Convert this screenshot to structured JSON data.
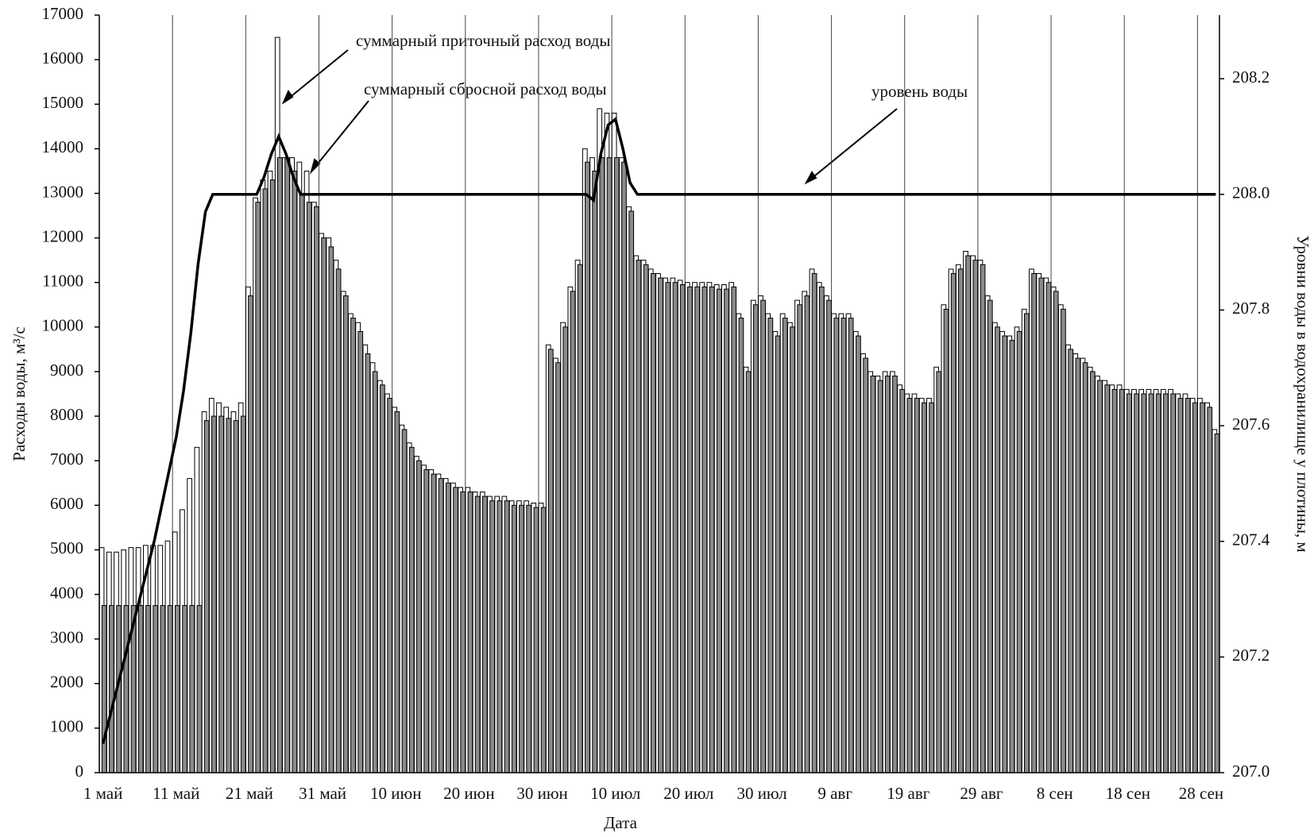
{
  "chart_data": {
    "type": "bar",
    "x_label": "Дата",
    "y_label": "Расходы воды, м³/с",
    "y2_label": "Уровни воды в водохранилище у плотины, м",
    "annotations": [
      "суммарный приточный расход воды",
      "суммарный сбросной расход воды",
      "уровень воды"
    ],
    "categories": [
      "1 май",
      null,
      null,
      null,
      null,
      null,
      null,
      null,
      null,
      null,
      "11 май",
      null,
      null,
      null,
      null,
      null,
      null,
      null,
      null,
      null,
      "21 май",
      null,
      null,
      null,
      null,
      null,
      null,
      null,
      null,
      null,
      "31 май",
      null,
      null,
      null,
      null,
      null,
      null,
      null,
      null,
      null,
      "10 июн",
      null,
      null,
      null,
      null,
      null,
      null,
      null,
      null,
      null,
      "20 июн",
      null,
      null,
      null,
      null,
      null,
      null,
      null,
      null,
      null,
      "30 июн",
      null,
      null,
      null,
      null,
      null,
      null,
      null,
      null,
      null,
      "10 июл",
      null,
      null,
      null,
      null,
      null,
      null,
      null,
      null,
      null,
      "20 июл",
      null,
      null,
      null,
      null,
      null,
      null,
      null,
      null,
      null,
      "30 июл",
      null,
      null,
      null,
      null,
      null,
      null,
      null,
      null,
      null,
      "9 авг",
      null,
      null,
      null,
      null,
      null,
      null,
      null,
      null,
      null,
      "19 авг",
      null,
      null,
      null,
      null,
      null,
      null,
      null,
      null,
      null,
      "29 авг",
      null,
      null,
      null,
      null,
      null,
      null,
      null,
      null,
      null,
      "8 сен",
      null,
      null,
      null,
      null,
      null,
      null,
      null,
      null,
      null,
      "18 сен",
      null,
      null,
      null,
      null,
      null,
      null,
      null,
      null,
      null,
      "28 сен",
      null,
      null
    ],
    "series": [
      {
        "name": "суммарный приточный расход воды",
        "color": "#ffffff",
        "values": [
          5050,
          4950,
          4950,
          5000,
          5050,
          5050,
          5100,
          5100,
          5100,
          5200,
          5400,
          5900,
          6600,
          7300,
          8100,
          8400,
          8300,
          8200,
          8100,
          8300,
          10900,
          12900,
          13300,
          13500,
          16500,
          13800,
          13800,
          13700,
          13500,
          12800,
          12100,
          12000,
          11500,
          10800,
          10300,
          10100,
          9600,
          9200,
          8800,
          8500,
          8200,
          7800,
          7400,
          7100,
          6900,
          6800,
          6700,
          6600,
          6500,
          6400,
          6400,
          6300,
          6300,
          6200,
          6200,
          6200,
          6100,
          6100,
          6100,
          6050,
          6050,
          9600,
          9300,
          10100,
          10900,
          11500,
          14000,
          13800,
          14900,
          14800,
          14800,
          13800,
          12700,
          11600,
          11500,
          11300,
          11200,
          11100,
          11100,
          11050,
          11000,
          11000,
          11000,
          11000,
          10950,
          10950,
          11000,
          10300,
          9100,
          10600,
          10700,
          10300,
          9900,
          10300,
          10100,
          10600,
          10800,
          11300,
          11000,
          10700,
          10300,
          10300,
          10300,
          9900,
          9400,
          9000,
          8900,
          9000,
          9000,
          8700,
          8500,
          8500,
          8400,
          8400,
          9100,
          10500,
          11300,
          11400,
          11700,
          11600,
          11500,
          10700,
          10100,
          9900,
          9800,
          10000,
          10400,
          11300,
          11200,
          11100,
          10900,
          10500,
          9600,
          9400,
          9300,
          9100,
          8900,
          8800,
          8700,
          8700,
          8600,
          8600,
          8600,
          8600,
          8600,
          8600,
          8600,
          8500,
          8500,
          8400,
          8400,
          8300,
          7700
        ]
      },
      {
        "name": "суммарный сбросной расход воды",
        "color": "#8a8a8a",
        "values": [
          3750,
          3750,
          3750,
          3750,
          3750,
          3750,
          3750,
          3750,
          3750,
          3750,
          3750,
          3750,
          3750,
          3750,
          7900,
          8000,
          8000,
          7950,
          7900,
          8000,
          10700,
          12800,
          13100,
          13300,
          13800,
          13800,
          13500,
          13000,
          12800,
          12700,
          12000,
          11800,
          11300,
          10700,
          10200,
          9900,
          9400,
          9000,
          8700,
          8400,
          8100,
          7700,
          7300,
          7000,
          6800,
          6700,
          6600,
          6500,
          6400,
          6300,
          6300,
          6200,
          6200,
          6100,
          6100,
          6100,
          6000,
          6000,
          6000,
          5950,
          5950,
          9500,
          9200,
          10000,
          10800,
          11400,
          13700,
          13500,
          13800,
          13800,
          13800,
          13700,
          12600,
          11500,
          11400,
          11200,
          11100,
          11000,
          11000,
          10950,
          10900,
          10900,
          10900,
          10900,
          10850,
          10850,
          10900,
          10200,
          9000,
          10500,
          10600,
          10200,
          9800,
          10200,
          10000,
          10500,
          10700,
          11200,
          10900,
          10600,
          10200,
          10200,
          10200,
          9800,
          9300,
          8900,
          8800,
          8900,
          8900,
          8600,
          8400,
          8400,
          8300,
          8300,
          9000,
          10400,
          11200,
          11300,
          11600,
          11500,
          11400,
          10600,
          10000,
          9800,
          9700,
          9900,
          10300,
          11200,
          11100,
          11000,
          10800,
          10400,
          9500,
          9300,
          9200,
          9000,
          8800,
          8700,
          8600,
          8600,
          8500,
          8500,
          8500,
          8500,
          8500,
          8500,
          8500,
          8400,
          8400,
          8300,
          8300,
          8200,
          7600
        ]
      },
      {
        "name": "уровень воды",
        "color": "#000000",
        "axis": "y2",
        "type": "line",
        "values": [
          207.05,
          207.1,
          207.15,
          207.2,
          207.25,
          207.3,
          207.35,
          207.4,
          207.46,
          207.52,
          207.58,
          207.66,
          207.76,
          207.88,
          207.97,
          208.0,
          208.0,
          208.0,
          208.0,
          208.0,
          208.0,
          208.0,
          208.03,
          208.07,
          208.1,
          208.07,
          208.03,
          208.0,
          208.0,
          208.0,
          208.0,
          208.0,
          208.0,
          208.0,
          208.0,
          208.0,
          208.0,
          208.0,
          208.0,
          208.0,
          208.0,
          208.0,
          208.0,
          208.0,
          208.0,
          208.0,
          208.0,
          208.0,
          208.0,
          208.0,
          208.0,
          208.0,
          208.0,
          208.0,
          208.0,
          208.0,
          208.0,
          208.0,
          208.0,
          208.0,
          208.0,
          208.0,
          208.0,
          208.0,
          208.0,
          208.0,
          208.0,
          207.99,
          208.07,
          208.12,
          208.13,
          208.08,
          208.02,
          208.0,
          208.0,
          208.0,
          208.0,
          208.0,
          208.0,
          208.0,
          208.0,
          208.0,
          208.0,
          208.0,
          208.0,
          208.0,
          208.0,
          208.0,
          208.0,
          208.0,
          208.0,
          208.0,
          208.0,
          208.0,
          208.0,
          208.0,
          208.0,
          208.0,
          208.0,
          208.0,
          208.0,
          208.0,
          208.0,
          208.0,
          208.0,
          208.0,
          208.0,
          208.0,
          208.0,
          208.0,
          208.0,
          208.0,
          208.0,
          208.0,
          208.0,
          208.0,
          208.0,
          208.0,
          208.0,
          208.0,
          208.0,
          208.0,
          208.0,
          208.0,
          208.0,
          208.0,
          208.0,
          208.0,
          208.0,
          208.0,
          208.0,
          208.0,
          208.0,
          208.0,
          208.0,
          208.0,
          208.0,
          208.0,
          208.0,
          208.0,
          208.0,
          208.0,
          208.0,
          208.0,
          208.0,
          208.0,
          208.0,
          208.0,
          208.0,
          208.0,
          208.0,
          208.0,
          208.0
        ]
      }
    ],
    "ylim": [
      0,
      17000
    ],
    "yticks": [
      0,
      1000,
      2000,
      3000,
      4000,
      5000,
      6000,
      7000,
      8000,
      9000,
      10000,
      11000,
      12000,
      13000,
      14000,
      15000,
      16000,
      17000
    ],
    "y2lim": [
      207,
      208.31
    ],
    "y2ticks": [
      {
        "value": 207,
        "label": "207.0"
      },
      207.2,
      207.4,
      207.6,
      207.8,
      {
        "value": 208,
        "label": "208.0"
      },
      208.2
    ],
    "grid": true
  }
}
